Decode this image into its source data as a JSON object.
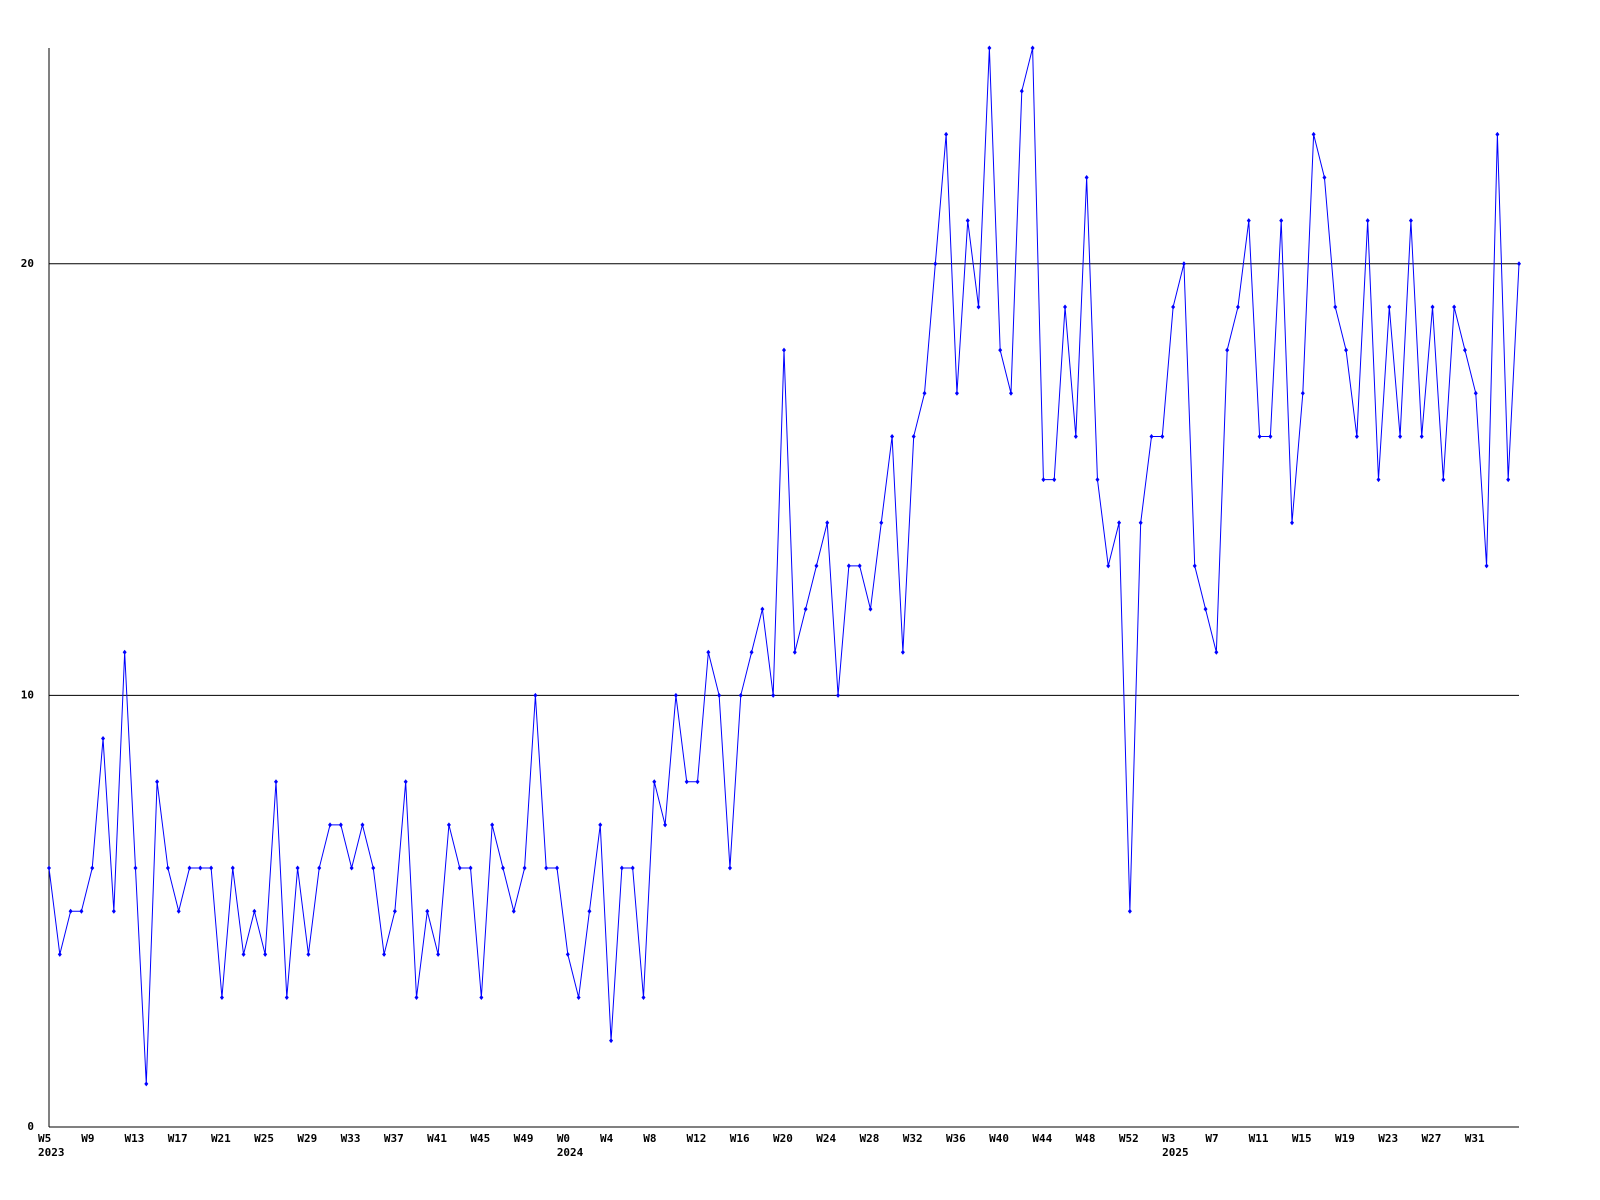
{
  "chart_data": {
    "type": "line",
    "categories": [
      "W5",
      null,
      null,
      null,
      "W9",
      null,
      null,
      null,
      "W13",
      null,
      null,
      null,
      "W17",
      null,
      null,
      null,
      "W21",
      null,
      null,
      null,
      "W25",
      null,
      null,
      null,
      "W29",
      null,
      null,
      null,
      "W33",
      null,
      null,
      null,
      "W37",
      null,
      null,
      null,
      "W41",
      null,
      null,
      null,
      "W45",
      null,
      null,
      null,
      "W49",
      null,
      null,
      null,
      "W0",
      null,
      null,
      null,
      "W4",
      null,
      null,
      null,
      "W8",
      null,
      null,
      null,
      "W12",
      null,
      null,
      null,
      "W16",
      null,
      null,
      null,
      "W20",
      null,
      null,
      null,
      "W24",
      null,
      null,
      null,
      "W28",
      null,
      null,
      null,
      "W32",
      null,
      null,
      null,
      "W36",
      null,
      null,
      null,
      "W40",
      null,
      null,
      null,
      "W44",
      null,
      null,
      null,
      "W48",
      null,
      null,
      null,
      "W52",
      null,
      null,
      null,
      "W3",
      null,
      null,
      null,
      "W7",
      null,
      null,
      null,
      "W11",
      null,
      null,
      null,
      "W15",
      null,
      null,
      null,
      "W19",
      null,
      null,
      null,
      "W23",
      null,
      null,
      null,
      "W27",
      null,
      null,
      null,
      "W31",
      null,
      null,
      null,
      null
    ],
    "category_groups": [
      "2023",
      null,
      null,
      null,
      null,
      null,
      null,
      null,
      null,
      null,
      null,
      null,
      null,
      null,
      null,
      null,
      null,
      null,
      null,
      null,
      null,
      null,
      null,
      null,
      null,
      null,
      null,
      null,
      null,
      null,
      null,
      null,
      null,
      null,
      null,
      null,
      null,
      null,
      null,
      null,
      null,
      null,
      null,
      null,
      null,
      null,
      null,
      null,
      "2024",
      null,
      null,
      null,
      null,
      null,
      null,
      null,
      null,
      null,
      null,
      null,
      null,
      null,
      null,
      null,
      null,
      null,
      null,
      null,
      null,
      null,
      null,
      null,
      null,
      null,
      null,
      null,
      null,
      null,
      null,
      null,
      null,
      null,
      null,
      null,
      null,
      null,
      null,
      null,
      null,
      null,
      null,
      null,
      null,
      null,
      null,
      null,
      null,
      null,
      null,
      null,
      null,
      null,
      null,
      null,
      "2025",
      null,
      null,
      null,
      null,
      null,
      null,
      null,
      null,
      null,
      null,
      null,
      null,
      null,
      null,
      null,
      null,
      null,
      null,
      null,
      null,
      null,
      null,
      null,
      null,
      null,
      null,
      null,
      null,
      null,
      null,
      null,
      null
    ],
    "series": [
      {
        "color": "#0000ff",
        "values": [
          6,
          4,
          5,
          5,
          6,
          9,
          5,
          11,
          6,
          1,
          8,
          6,
          5,
          6,
          6,
          6,
          3,
          6,
          4,
          5,
          4,
          8,
          3,
          6,
          4,
          6,
          7,
          7,
          6,
          7,
          6,
          4,
          5,
          8,
          3,
          5,
          4,
          7,
          6,
          6,
          3,
          7,
          6,
          5,
          6,
          10,
          6,
          6,
          4,
          3,
          5,
          7,
          2,
          6,
          6,
          3,
          8,
          7,
          10,
          8,
          8,
          11,
          10,
          6,
          10,
          11,
          12,
          10,
          18,
          11,
          12,
          13,
          14,
          10,
          13,
          13,
          12,
          14,
          16,
          11,
          16,
          17,
          20,
          23,
          17,
          21,
          19,
          25,
          18,
          17,
          24,
          25,
          15,
          15,
          19,
          16,
          22,
          15,
          13,
          14,
          5,
          14,
          16,
          16,
          19,
          20,
          13,
          12,
          11,
          18,
          19,
          21,
          16,
          16,
          21,
          14,
          17,
          23,
          22,
          19,
          18,
          16,
          21,
          15,
          19,
          16,
          21,
          16,
          19,
          15,
          19,
          18,
          17,
          13,
          23,
          15,
          20
        ]
      }
    ],
    "ylim": [
      0,
      25
    ],
    "yticks": [
      0,
      10,
      20
    ],
    "grid": true
  }
}
